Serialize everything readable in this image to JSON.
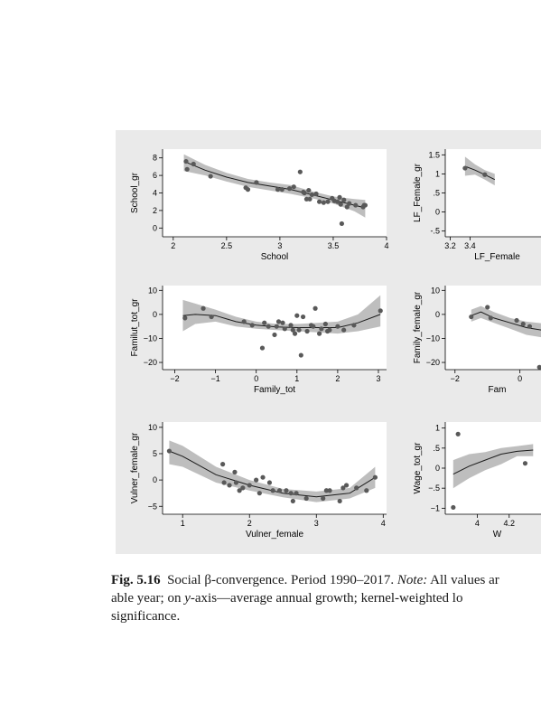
{
  "chart_data": [
    {
      "type": "scatter",
      "xlabel": "School",
      "ylabel": "School_gr",
      "xlim": [
        1.9,
        4
      ],
      "ylim": [
        -1,
        9
      ],
      "xticks": [
        2,
        2.5,
        3,
        3.5,
        4
      ],
      "yticks": [
        0,
        2,
        4,
        6,
        8
      ],
      "xticklabels": [
        "2",
        "2.5",
        "3",
        "3.5",
        "4"
      ],
      "yticklabels": [
        "0",
        "2",
        "4",
        "6",
        "8"
      ],
      "points": [
        [
          2.12,
          7.6
        ],
        [
          2.13,
          6.7
        ],
        [
          2.19,
          7.3
        ],
        [
          2.35,
          5.9
        ],
        [
          2.68,
          4.6
        ],
        [
          2.7,
          4.4
        ],
        [
          2.78,
          5.2
        ],
        [
          2.98,
          4.4
        ],
        [
          3.02,
          4.4
        ],
        [
          3.09,
          4.5
        ],
        [
          3.13,
          4.7
        ],
        [
          3.19,
          6.4
        ],
        [
          3.22,
          4.1
        ],
        [
          3.23,
          4.0
        ],
        [
          3.25,
          3.3
        ],
        [
          3.27,
          4.3
        ],
        [
          3.28,
          3.3
        ],
        [
          3.3,
          3.8
        ],
        [
          3.34,
          3.9
        ],
        [
          3.37,
          3.0
        ],
        [
          3.41,
          2.9
        ],
        [
          3.45,
          3.0
        ],
        [
          3.49,
          3.4
        ],
        [
          3.51,
          3.1
        ],
        [
          3.54,
          3.0
        ],
        [
          3.56,
          3.5
        ],
        [
          3.57,
          2.7
        ],
        [
          3.58,
          0.5
        ],
        [
          3.6,
          3.2
        ],
        [
          3.63,
          2.4
        ],
        [
          3.65,
          2.8
        ],
        [
          3.71,
          2.6
        ],
        [
          3.78,
          2.4
        ],
        [
          3.79,
          2.6
        ],
        [
          3.8,
          2.6
        ]
      ],
      "fit": [
        [
          2.1,
          7.6
        ],
        [
          2.3,
          6.6
        ],
        [
          2.5,
          5.8
        ],
        [
          2.7,
          5.2
        ],
        [
          2.9,
          4.8
        ],
        [
          3.1,
          4.4
        ],
        [
          3.3,
          3.8
        ],
        [
          3.5,
          3.2
        ],
        [
          3.7,
          2.6
        ],
        [
          3.8,
          2.3
        ]
      ],
      "band_low": [
        [
          2.1,
          6.5
        ],
        [
          2.3,
          6.0
        ],
        [
          2.5,
          5.3
        ],
        [
          2.7,
          4.7
        ],
        [
          2.9,
          4.3
        ],
        [
          3.1,
          3.9
        ],
        [
          3.3,
          3.4
        ],
        [
          3.5,
          2.8
        ],
        [
          3.7,
          1.9
        ],
        [
          3.8,
          1.2
        ]
      ],
      "band_high": [
        [
          2.1,
          8.4
        ],
        [
          2.3,
          7.2
        ],
        [
          2.5,
          6.3
        ],
        [
          2.7,
          5.6
        ],
        [
          2.9,
          5.2
        ],
        [
          3.1,
          4.9
        ],
        [
          3.3,
          4.2
        ],
        [
          3.5,
          3.6
        ],
        [
          3.7,
          3.3
        ],
        [
          3.8,
          3.2
        ]
      ]
    },
    {
      "type": "scatter",
      "xlabel": "LF_Female",
      "ylabel": "LF_Female_gr",
      "xlim": [
        3.15,
        4.2
      ],
      "ylim": [
        -0.65,
        1.65
      ],
      "xticks": [
        3.2,
        3.4
      ],
      "yticks": [
        -0.5,
        0,
        0.5,
        1,
        1.5
      ],
      "xticklabels": [
        "3.2",
        "3.4"
      ],
      "yticklabels": [
        "-.5",
        "0",
        ".5",
        "1",
        "1.5"
      ],
      "points": [
        [
          3.35,
          1.15
        ],
        [
          3.55,
          0.98
        ]
      ],
      "fit": [
        [
          3.35,
          1.2
        ],
        [
          3.45,
          1.1
        ],
        [
          3.55,
          0.98
        ],
        [
          3.65,
          0.85
        ]
      ],
      "band_low": [
        [
          3.35,
          0.95
        ],
        [
          3.45,
          0.98
        ],
        [
          3.55,
          0.85
        ],
        [
          3.65,
          0.7
        ]
      ],
      "band_high": [
        [
          3.35,
          1.45
        ],
        [
          3.45,
          1.25
        ],
        [
          3.55,
          1.1
        ],
        [
          3.65,
          1.0
        ]
      ]
    },
    {
      "type": "scatter",
      "xlabel": "Family_tot",
      "ylabel": "Familut_tot_gr",
      "xlim": [
        -2.3,
        3.2
      ],
      "ylim": [
        -23,
        12
      ],
      "xticks": [
        -2,
        -1,
        0,
        1,
        2,
        3
      ],
      "yticks": [
        -20,
        -10,
        0,
        10
      ],
      "xticklabels": [
        "−2",
        "−1",
        "0",
        "1",
        "2",
        "3"
      ],
      "yticklabels": [
        "−20",
        "−10",
        "0",
        "10"
      ],
      "points": [
        [
          -1.75,
          -1.5
        ],
        [
          -1.3,
          2.5
        ],
        [
          -1.1,
          -1
        ],
        [
          -0.3,
          -3
        ],
        [
          -0.1,
          -4.5
        ],
        [
          0.15,
          -14
        ],
        [
          0.2,
          -3.5
        ],
        [
          0.3,
          -5
        ],
        [
          0.45,
          -8.5
        ],
        [
          0.5,
          -5
        ],
        [
          0.55,
          -3
        ],
        [
          0.65,
          -3.5
        ],
        [
          0.7,
          -6
        ],
        [
          0.85,
          -4.5
        ],
        [
          0.9,
          -6.5
        ],
        [
          0.95,
          -8
        ],
        [
          1.0,
          -0.5
        ],
        [
          1.05,
          -6.5
        ],
        [
          1.1,
          -17
        ],
        [
          1.15,
          -1
        ],
        [
          1.25,
          -7
        ],
        [
          1.35,
          -4.5
        ],
        [
          1.4,
          -5
        ],
        [
          1.45,
          2.5
        ],
        [
          1.55,
          -8
        ],
        [
          1.6,
          -6
        ],
        [
          1.7,
          -4
        ],
        [
          1.75,
          -7
        ],
        [
          1.8,
          -6.5
        ],
        [
          2.0,
          -5
        ],
        [
          2.15,
          -6.5
        ],
        [
          2.4,
          -4.5
        ],
        [
          3.05,
          1.5
        ]
      ],
      "fit": [
        [
          -1.8,
          -0.5
        ],
        [
          -1.5,
          0
        ],
        [
          -1.0,
          -0.5
        ],
        [
          -0.5,
          -3
        ],
        [
          0,
          -4.5
        ],
        [
          0.5,
          -5.2
        ],
        [
          1.0,
          -5.5
        ],
        [
          1.5,
          -5.5
        ],
        [
          2.0,
          -5.5
        ],
        [
          2.5,
          -3.5
        ],
        [
          3.05,
          0
        ]
      ],
      "band_low": [
        [
          -1.8,
          -7
        ],
        [
          -1.5,
          -4
        ],
        [
          -1.0,
          -3
        ],
        [
          -0.5,
          -5
        ],
        [
          0,
          -6
        ],
        [
          0.5,
          -6.5
        ],
        [
          1.0,
          -7
        ],
        [
          1.5,
          -7.5
        ],
        [
          2.0,
          -8
        ],
        [
          2.5,
          -7
        ],
        [
          3.05,
          -5
        ]
      ],
      "band_high": [
        [
          -1.8,
          6
        ],
        [
          -1.5,
          4.5
        ],
        [
          -1.0,
          2
        ],
        [
          -0.5,
          -1
        ],
        [
          0,
          -3
        ],
        [
          0.5,
          -4
        ],
        [
          1.0,
          -4
        ],
        [
          1.5,
          -3.5
        ],
        [
          2.0,
          -3
        ],
        [
          2.5,
          0
        ],
        [
          3.05,
          8
        ]
      ]
    },
    {
      "type": "scatter",
      "xlabel": "Fam",
      "ylabel": "Family_female_gr",
      "xlim": [
        -2.3,
        0.9
      ],
      "ylim": [
        -23,
        12
      ],
      "xticks": [
        -2,
        0
      ],
      "yticks": [
        -20,
        -10,
        0,
        10
      ],
      "xticklabels": [
        "−2",
        "0"
      ],
      "yticklabels": [
        "−20",
        "−10",
        "0",
        "10"
      ],
      "points": [
        [
          -1.5,
          -1
        ],
        [
          -1.0,
          3
        ],
        [
          -0.9,
          -1.5
        ],
        [
          -0.1,
          -2.5
        ],
        [
          0.1,
          -4
        ],
        [
          0.3,
          -5
        ],
        [
          0.6,
          -22
        ]
      ],
      "fit": [
        [
          -1.5,
          -0.5
        ],
        [
          -1.2,
          1
        ],
        [
          -0.8,
          -1.5
        ],
        [
          -0.3,
          -3.5
        ],
        [
          0.2,
          -5.5
        ],
        [
          0.9,
          -7
        ]
      ],
      "band_low": [
        [
          -1.5,
          -3
        ],
        [
          -1.2,
          -1.5
        ],
        [
          -0.8,
          -3.5
        ],
        [
          -0.3,
          -6
        ],
        [
          0.2,
          -8.5
        ],
        [
          0.9,
          -10
        ]
      ],
      "band_high": [
        [
          -1.5,
          2
        ],
        [
          -1.2,
          3.5
        ],
        [
          -0.8,
          1
        ],
        [
          -0.3,
          -1.5
        ],
        [
          0.2,
          -3
        ],
        [
          0.9,
          -4
        ]
      ]
    },
    {
      "type": "scatter",
      "xlabel": "Vulner_female",
      "ylabel": "Vulner_female_gr",
      "xlim": [
        0.7,
        4.05
      ],
      "ylim": [
        -6.5,
        11
      ],
      "xticks": [
        1,
        2,
        3,
        4
      ],
      "yticks": [
        -5,
        0,
        5,
        10
      ],
      "xticklabels": [
        "1",
        "2",
        "3",
        "4"
      ],
      "yticklabels": [
        "−5",
        "0",
        "5",
        "10"
      ],
      "points": [
        [
          0.8,
          5.5
        ],
        [
          1.6,
          3
        ],
        [
          1.62,
          -0.5
        ],
        [
          1.7,
          -1
        ],
        [
          1.78,
          1.5
        ],
        [
          1.8,
          -0.5
        ],
        [
          1.85,
          -2
        ],
        [
          1.9,
          -1.5
        ],
        [
          2.0,
          -1
        ],
        [
          2.1,
          0
        ],
        [
          2.15,
          -2.5
        ],
        [
          2.2,
          0.5
        ],
        [
          2.3,
          -0.5
        ],
        [
          2.35,
          -2
        ],
        [
          2.45,
          -2
        ],
        [
          2.55,
          -2
        ],
        [
          2.62,
          -2.5
        ],
        [
          2.65,
          -4
        ],
        [
          2.7,
          -2.5
        ],
        [
          2.85,
          -3.5
        ],
        [
          3.1,
          -3.5
        ],
        [
          3.15,
          -2
        ],
        [
          3.2,
          -2
        ],
        [
          3.35,
          -4
        ],
        [
          3.4,
          -1.5
        ],
        [
          3.45,
          -1
        ],
        [
          3.6,
          -1.5
        ],
        [
          3.75,
          -2
        ],
        [
          3.88,
          0.5
        ]
      ],
      "fit": [
        [
          0.8,
          5.5
        ],
        [
          1.0,
          4.5
        ],
        [
          1.5,
          1
        ],
        [
          2.0,
          -1
        ],
        [
          2.5,
          -2.5
        ],
        [
          3.0,
          -3.2
        ],
        [
          3.5,
          -2.5
        ],
        [
          3.88,
          0.5
        ]
      ],
      "band_low": [
        [
          0.8,
          3
        ],
        [
          1.0,
          2.5
        ],
        [
          1.5,
          -0.5
        ],
        [
          2.0,
          -2
        ],
        [
          2.5,
          -3.3
        ],
        [
          3.0,
          -4.2
        ],
        [
          3.5,
          -3.5
        ],
        [
          3.88,
          -1.5
        ]
      ],
      "band_high": [
        [
          0.8,
          7.5
        ],
        [
          1.0,
          6.5
        ],
        [
          1.5,
          2.5
        ],
        [
          2.0,
          0
        ],
        [
          2.5,
          -1.7
        ],
        [
          3.0,
          -2.2
        ],
        [
          3.5,
          -1.5
        ],
        [
          3.88,
          2.5
        ]
      ]
    },
    {
      "type": "scatter",
      "xlabel": "W",
      "ylabel": "Wage_tot_gr",
      "xlim": [
        3.8,
        4.45
      ],
      "ylim": [
        -1.15,
        1.15
      ],
      "xticks": [
        4,
        4.2
      ],
      "yticks": [
        -1,
        -0.5,
        0,
        0.5,
        1
      ],
      "xticklabels": [
        "4",
        "4.2"
      ],
      "yticklabels": [
        "−1",
        "−.5",
        "0",
        ".5",
        "1"
      ],
      "points": [
        [
          3.85,
          -0.98
        ],
        [
          3.88,
          0.85
        ],
        [
          4.3,
          0.12
        ]
      ],
      "fit": [
        [
          3.85,
          -0.15
        ],
        [
          3.95,
          0.05
        ],
        [
          4.05,
          0.2
        ],
        [
          4.15,
          0.35
        ],
        [
          4.25,
          0.42
        ],
        [
          4.35,
          0.45
        ]
      ],
      "band_low": [
        [
          3.85,
          -0.5
        ],
        [
          3.95,
          -0.25
        ],
        [
          4.05,
          -0.05
        ],
        [
          4.15,
          0.1
        ],
        [
          4.25,
          0.3
        ],
        [
          4.35,
          0.3
        ]
      ],
      "band_high": [
        [
          3.85,
          0.2
        ],
        [
          3.95,
          0.35
        ],
        [
          4.05,
          0.4
        ],
        [
          4.15,
          0.5
        ],
        [
          4.25,
          0.55
        ],
        [
          4.35,
          0.6
        ]
      ]
    }
  ],
  "caption": {
    "label": "Fig. 5.16",
    "title": "Social β-convergence. Period 1990–2017.",
    "note_label": "Note:",
    "line1_rest": "All values ar",
    "line2_start": "able year; on ",
    "line2_italic": "y",
    "line2_rest": "-axis—average annual growth; kernel-weighted lo",
    "line3": "significance."
  },
  "colors": {
    "panel_bg": "#eaeaea",
    "plot_bg": "#ffffff",
    "band": "#bebebe",
    "point": "#595959",
    "fit_line": "#1a1a1a",
    "axis": "#000000"
  }
}
